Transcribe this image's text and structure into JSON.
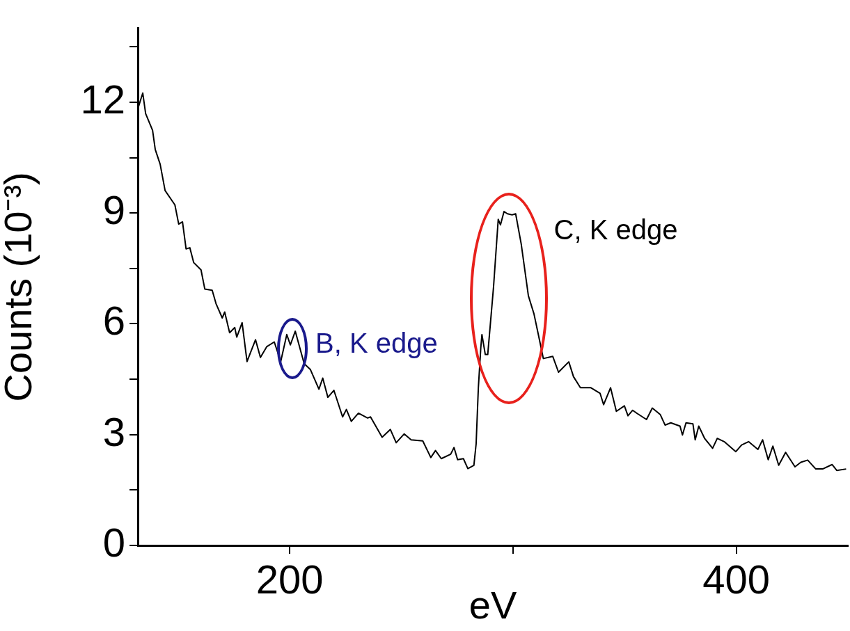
{
  "chart_data": {
    "type": "line",
    "xlabel": "eV",
    "ylabel": "Counts (10⁻³)",
    "xlim": [
      132,
      450
    ],
    "ylim": [
      0,
      14
    ],
    "xticks": [
      200,
      {
        "value": 300,
        "label": null
      },
      400
    ],
    "yticks": [
      0,
      {
        "value": 1.5,
        "label": null
      },
      3,
      {
        "value": 4.5,
        "label": null
      },
      6,
      {
        "value": 7.5,
        "label": null
      },
      9,
      {
        "value": 10.5,
        "label": null
      },
      12,
      {
        "value": 13.5,
        "label": null
      }
    ],
    "grid": false,
    "legend": false,
    "marker": "none",
    "line_style": "solid",
    "annotations": [
      {
        "text": "B, K edge",
        "x": 200.3,
        "y": 5.43
      },
      {
        "text": "C, K edge",
        "x": 299.6,
        "y": 8.95
      }
    ],
    "series": [
      {
        "color": "#000000",
        "x": [
          132.0,
          134.2,
          135.5,
          138.6,
          139.8,
          142.0,
          144.2,
          148.6,
          150.3,
          152.0,
          153.6,
          155.3,
          157.0,
          160.3,
          162.0,
          165.3,
          167.0,
          169.8,
          170.9,
          173.1,
          175.4,
          176.3,
          178.7,
          180.9,
          184.7,
          186.9,
          189.7,
          193.1,
          196.0,
          198.7,
          200.3,
          202.5,
          206.5,
          209.3,
          213.1,
          214.8,
          217.1,
          219.8,
          223.7,
          225.4,
          227.6,
          230.8,
          234.9,
          236.2,
          241.4,
          245.1,
          247.7,
          251.3,
          254.4,
          259.6,
          263.2,
          265.3,
          267.9,
          272.1,
          273.6,
          275.2,
          277.8,
          279.8,
          282.5,
          283.5,
          284.5,
          285.6,
          286.1,
          287.6,
          288.7,
          291.3,
          293.4,
          294.4,
          296.0,
          297.5,
          299.6,
          301.2,
          303.7,
          306.9,
          309.4,
          311.5,
          313.6,
          317.8,
          320.4,
          325.0,
          327.1,
          330.2,
          334.9,
          339.0,
          340.6,
          343.7,
          346.3,
          349.9,
          351.5,
          353.6,
          355.7,
          359.8,
          362.4,
          366.0,
          368.1,
          370.7,
          374.8,
          375.9,
          377.5,
          380.6,
          381.6,
          383.2,
          385.8,
          389.4,
          391.5,
          394.6,
          399.8,
          402.4,
          405.5,
          409.7,
          411.8,
          414.3,
          416.4,
          419.0,
          422.1,
          426.3,
          428.9,
          432.0,
          435.6,
          438.7,
          442.9,
          445.0,
          449.2
        ],
        "values": [
          11.82,
          12.25,
          11.69,
          11.24,
          10.72,
          10.32,
          9.61,
          9.22,
          8.7,
          8.76,
          8.03,
          8.06,
          7.66,
          7.46,
          6.94,
          6.91,
          6.55,
          6.16,
          6.32,
          5.76,
          5.9,
          5.64,
          6.03,
          4.98,
          5.57,
          5.09,
          5.38,
          5.51,
          4.98,
          5.71,
          5.43,
          5.8,
          4.92,
          4.76,
          4.23,
          4.53,
          4.01,
          4.2,
          3.48,
          3.68,
          3.36,
          3.58,
          3.45,
          3.48,
          2.93,
          3.14,
          2.78,
          3.02,
          2.86,
          2.83,
          2.38,
          2.57,
          2.35,
          2.47,
          2.65,
          2.32,
          2.35,
          2.08,
          2.17,
          2.75,
          4.27,
          5.36,
          5.71,
          5.17,
          5.17,
          7.0,
          8.83,
          8.68,
          9.04,
          8.98,
          8.95,
          8.98,
          8.16,
          6.76,
          6.27,
          5.67,
          5.06,
          5.12,
          4.69,
          4.97,
          4.57,
          4.27,
          4.27,
          4.12,
          3.81,
          4.27,
          3.63,
          3.78,
          3.51,
          3.66,
          3.57,
          3.41,
          3.72,
          3.54,
          3.26,
          3.32,
          3.23,
          2.99,
          3.32,
          3.29,
          2.86,
          3.23,
          2.9,
          2.63,
          2.9,
          2.81,
          2.54,
          2.72,
          2.81,
          2.6,
          2.86,
          2.32,
          2.69,
          2.17,
          2.52,
          2.13,
          2.25,
          2.31,
          2.07,
          2.07,
          2.19,
          2.03,
          2.07
        ]
      }
    ]
  }
}
